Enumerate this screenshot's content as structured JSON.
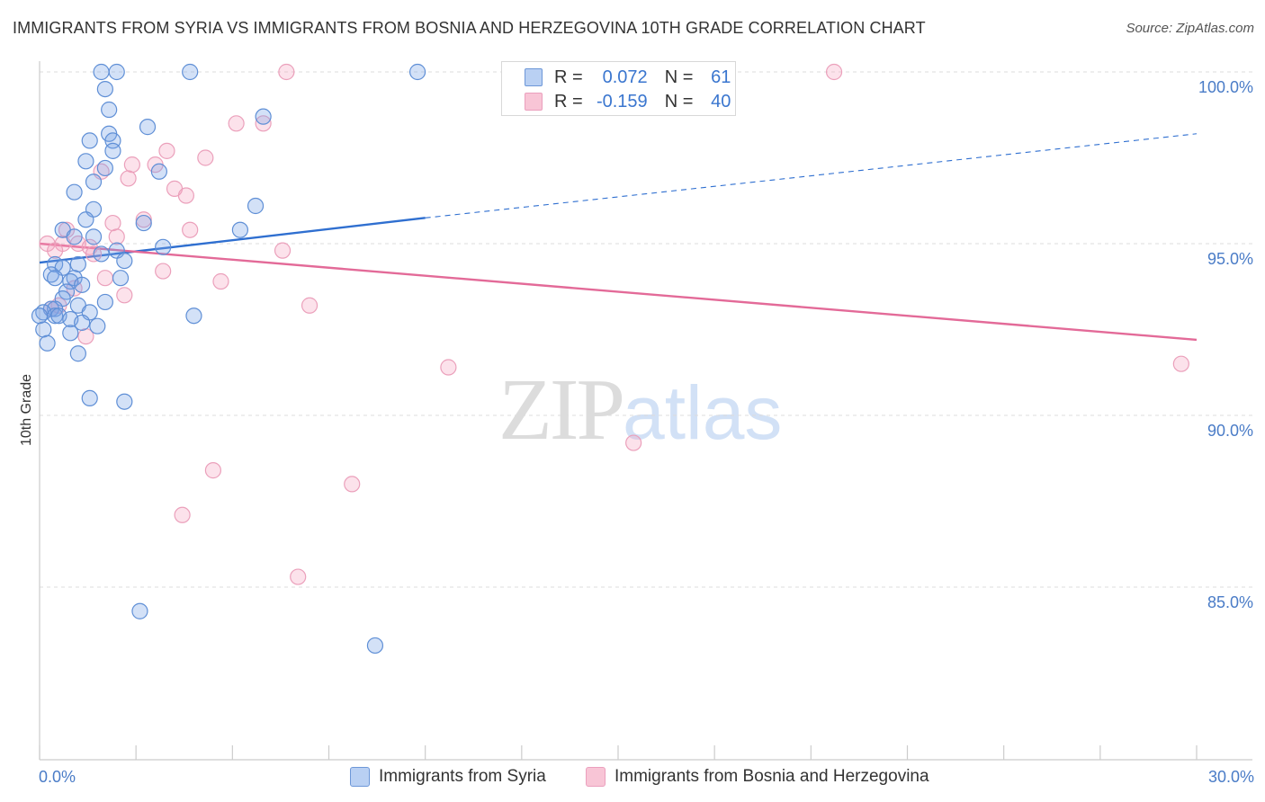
{
  "header": {
    "title": "IMMIGRANTS FROM SYRIA VS IMMIGRANTS FROM BOSNIA AND HERZEGOVINA 10TH GRADE CORRELATION CHART",
    "source": "Source: ZipAtlas.com"
  },
  "watermark": {
    "zip": "ZIP",
    "atlas": "atlas"
  },
  "legend": {
    "r_label": "R =",
    "n_label": "N =",
    "syria": {
      "r": "0.072",
      "n": "61",
      "name": "Immigrants from Syria"
    },
    "bosnia": {
      "r": "-0.159",
      "n": "40",
      "name": "Immigrants from Bosnia and Herzegovina"
    }
  },
  "colors": {
    "syria_stroke": "#5f8fd6",
    "syria_line": "#2f6fd0",
    "bosnia_stroke": "#eba0bb",
    "bosnia_line": "#e36a98",
    "tick_label": "#4a7cc7"
  },
  "chart_data": {
    "type": "scatter",
    "title": "IMMIGRANTS FROM SYRIA VS IMMIGRANTS FROM BOSNIA AND HERZEGOVINA 10TH GRADE CORRELATION CHART",
    "xlabel": "",
    "ylabel": "10th Grade",
    "xlim": [
      0,
      30
    ],
    "ylim": [
      80,
      100.4
    ],
    "x_tick_labels": [
      "0.0%",
      "30.0%"
    ],
    "y_ticks": [
      85,
      90,
      95,
      100
    ],
    "y_tick_labels": [
      "85.0%",
      "90.0%",
      "95.0%",
      "100.0%"
    ],
    "grid": true,
    "legend_position": "top-center",
    "series": [
      {
        "name": "Immigrants from Syria",
        "r": 0.072,
        "n": 61,
        "trend": {
          "x": [
            0,
            10,
            30
          ],
          "y": [
            94.45,
            95.75,
            98.2
          ],
          "solid_until": 10
        },
        "points": [
          {
            "x": 1.6,
            "y": 100.0
          },
          {
            "x": 2.0,
            "y": 100.0
          },
          {
            "x": 3.9,
            "y": 100.0
          },
          {
            "x": 9.8,
            "y": 100.0
          },
          {
            "x": 1.7,
            "y": 99.5
          },
          {
            "x": 1.8,
            "y": 98.9
          },
          {
            "x": 5.8,
            "y": 98.7
          },
          {
            "x": 2.8,
            "y": 98.4
          },
          {
            "x": 1.8,
            "y": 98.2
          },
          {
            "x": 1.3,
            "y": 98.0
          },
          {
            "x": 1.9,
            "y": 98.0
          },
          {
            "x": 1.9,
            "y": 97.7
          },
          {
            "x": 1.2,
            "y": 97.4
          },
          {
            "x": 1.7,
            "y": 97.2
          },
          {
            "x": 3.1,
            "y": 97.1
          },
          {
            "x": 1.4,
            "y": 96.8
          },
          {
            "x": 0.9,
            "y": 96.5
          },
          {
            "x": 5.6,
            "y": 96.1
          },
          {
            "x": 1.4,
            "y": 96.0
          },
          {
            "x": 1.2,
            "y": 95.7
          },
          {
            "x": 2.7,
            "y": 95.6
          },
          {
            "x": 0.6,
            "y": 95.4
          },
          {
            "x": 5.2,
            "y": 95.4
          },
          {
            "x": 0.9,
            "y": 95.2
          },
          {
            "x": 1.4,
            "y": 95.2
          },
          {
            "x": 3.2,
            "y": 94.9
          },
          {
            "x": 2.0,
            "y": 94.8
          },
          {
            "x": 1.6,
            "y": 94.7
          },
          {
            "x": 2.2,
            "y": 94.5
          },
          {
            "x": 0.4,
            "y": 94.4
          },
          {
            "x": 1.0,
            "y": 94.4
          },
          {
            "x": 0.6,
            "y": 94.3
          },
          {
            "x": 0.3,
            "y": 94.1
          },
          {
            "x": 0.4,
            "y": 94.0
          },
          {
            "x": 0.9,
            "y": 94.0
          },
          {
            "x": 2.1,
            "y": 94.0
          },
          {
            "x": 0.8,
            "y": 93.9
          },
          {
            "x": 1.1,
            "y": 93.8
          },
          {
            "x": 0.7,
            "y": 93.6
          },
          {
            "x": 0.6,
            "y": 93.4
          },
          {
            "x": 1.7,
            "y": 93.3
          },
          {
            "x": 1.0,
            "y": 93.2
          },
          {
            "x": 0.3,
            "y": 93.1
          },
          {
            "x": 0.4,
            "y": 93.1
          },
          {
            "x": 0.1,
            "y": 93.0
          },
          {
            "x": 1.3,
            "y": 93.0
          },
          {
            "x": 4.0,
            "y": 92.9
          },
          {
            "x": 0.4,
            "y": 92.9
          },
          {
            "x": 0.5,
            "y": 92.9
          },
          {
            "x": 0.8,
            "y": 92.8
          },
          {
            "x": 1.1,
            "y": 92.7
          },
          {
            "x": 1.5,
            "y": 92.6
          },
          {
            "x": 0.1,
            "y": 92.5
          },
          {
            "x": 0.8,
            "y": 92.4
          },
          {
            "x": 0.2,
            "y": 92.1
          },
          {
            "x": 1.0,
            "y": 91.8
          },
          {
            "x": 1.3,
            "y": 90.5
          },
          {
            "x": 2.2,
            "y": 90.4
          },
          {
            "x": 2.6,
            "y": 84.3
          },
          {
            "x": 8.7,
            "y": 83.3
          },
          {
            "x": 0.0,
            "y": 92.9
          }
        ]
      },
      {
        "name": "Immigrants from Bosnia and Herzegovina",
        "r": -0.159,
        "n": 40,
        "trend": {
          "x": [
            0,
            30
          ],
          "y": [
            95.0,
            92.2
          ]
        },
        "points": [
          {
            "x": 6.4,
            "y": 100.0
          },
          {
            "x": 20.6,
            "y": 100.0
          },
          {
            "x": 5.1,
            "y": 98.5
          },
          {
            "x": 5.8,
            "y": 98.5
          },
          {
            "x": 3.3,
            "y": 97.7
          },
          {
            "x": 4.3,
            "y": 97.5
          },
          {
            "x": 3.0,
            "y": 97.3
          },
          {
            "x": 2.4,
            "y": 97.3
          },
          {
            "x": 1.6,
            "y": 97.1
          },
          {
            "x": 2.3,
            "y": 96.9
          },
          {
            "x": 3.5,
            "y": 96.6
          },
          {
            "x": 3.8,
            "y": 96.4
          },
          {
            "x": 2.7,
            "y": 95.7
          },
          {
            "x": 1.9,
            "y": 95.6
          },
          {
            "x": 3.9,
            "y": 95.4
          },
          {
            "x": 0.7,
            "y": 95.4
          },
          {
            "x": 2.0,
            "y": 95.2
          },
          {
            "x": 0.2,
            "y": 95.0
          },
          {
            "x": 0.6,
            "y": 95.0
          },
          {
            "x": 1.0,
            "y": 95.0
          },
          {
            "x": 1.3,
            "y": 94.9
          },
          {
            "x": 0.4,
            "y": 94.8
          },
          {
            "x": 6.3,
            "y": 94.8
          },
          {
            "x": 1.4,
            "y": 94.7
          },
          {
            "x": 3.2,
            "y": 94.2
          },
          {
            "x": 1.7,
            "y": 94.0
          },
          {
            "x": 4.7,
            "y": 93.9
          },
          {
            "x": 0.9,
            "y": 93.7
          },
          {
            "x": 2.2,
            "y": 93.5
          },
          {
            "x": 7.0,
            "y": 93.2
          },
          {
            "x": 0.3,
            "y": 93.1
          },
          {
            "x": 0.5,
            "y": 93.2
          },
          {
            "x": 1.2,
            "y": 92.3
          },
          {
            "x": 10.6,
            "y": 91.4
          },
          {
            "x": 29.6,
            "y": 91.5
          },
          {
            "x": 15.4,
            "y": 89.2
          },
          {
            "x": 4.5,
            "y": 88.4
          },
          {
            "x": 8.1,
            "y": 88.0
          },
          {
            "x": 3.7,
            "y": 87.1
          },
          {
            "x": 6.7,
            "y": 85.3
          }
        ]
      }
    ]
  }
}
